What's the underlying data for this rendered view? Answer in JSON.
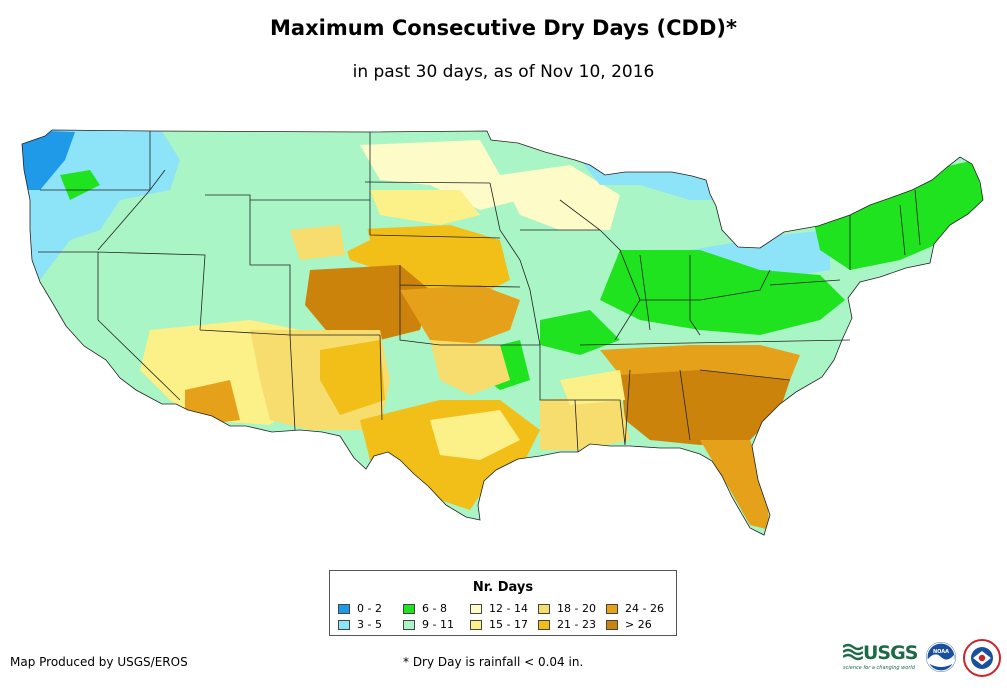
{
  "title": "Maximum Consecutive Dry Days (CDD)*",
  "subtitle": "in past 30 days, as of Nov 10, 2016",
  "legend": {
    "title": "Nr. Days",
    "items": [
      {
        "label": "0 - 2",
        "color": "#1e9ae8"
      },
      {
        "label": "3 - 5",
        "color": "#8de3f7"
      },
      {
        "label": "6 - 8",
        "color": "#1fe31f"
      },
      {
        "label": "9 - 11",
        "color": "#a9f5c5"
      },
      {
        "label": "12 - 14",
        "color": "#fdfbc8"
      },
      {
        "label": "15 - 17",
        "color": "#fbf188"
      },
      {
        "label": "18 - 20",
        "color": "#f7dd6e"
      },
      {
        "label": "21 - 23",
        "color": "#f2be18"
      },
      {
        "label": "24 - 26",
        "color": "#e6a11a"
      },
      {
        "label": "> 26",
        "color": "#cc830b"
      }
    ]
  },
  "footer": {
    "producer": "Map Produced by USGS/EROS",
    "note": "* Dry Day is rainfall < 0.04 in."
  },
  "logos": {
    "usgs": "USGS",
    "usgs_tagline": "science for a changing world",
    "noaa": "NOAA"
  }
}
